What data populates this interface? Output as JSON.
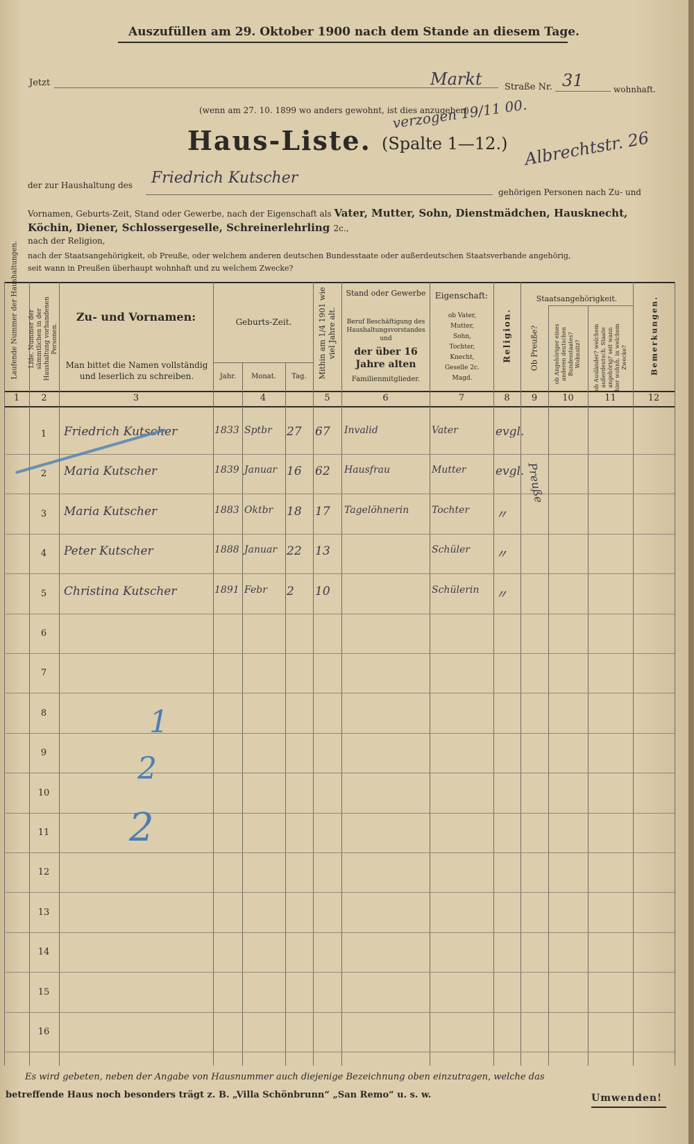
{
  "header": {
    "instruction": "Auszufüllen am 29. Oktober 1900 nach dem Stande an diesem Tage.",
    "now_label": "Jetzt",
    "street_handwritten": "Markt",
    "street_label": "Straße Nr.",
    "house_number_handwritten": "31",
    "resident_label": "wohnhaft.",
    "previous_note": "(wenn am 27. 10. 1899 wo anders gewohnt, ist dies anzugeben)",
    "moved_note_handwritten": "verzogen 19/11 00.",
    "new_address_handwritten": "Albrechtstr. 26",
    "title": "Haus-Liste.",
    "subtitle": "(Spalte 1—12.)",
    "household_label": "der zur Haushaltung des",
    "household_head_handwritten": "Friedrich Kutscher",
    "persons_label": "gehörigen Personen nach Zu- und",
    "desc_line1": "Vornamen, Geburts-Zeit, Stand oder Gewerbe, nach der Eigenschaft als",
    "desc_line1_bold": "Vater, Mutter, Sohn, Dienstmädchen, Hausknecht,",
    "desc_line2_bold": "Köchin, Diener, Schlossergeselle, Schreinerlehrling",
    "desc_line2_end": "2c.,",
    "desc_line3": "nach der Religion,",
    "desc_line4": "nach der Staatsangehörigkeit, ob Preuße, oder welchem anderen deutschen Bundesstaate oder außerdeutschen Staatsverbande angehörig,",
    "desc_line5": "seit wann in Preußen überhaupt wohnhaft und zu welchem Zwecke?"
  },
  "table": {
    "columns": {
      "c1": "Laufende Nummer der Haushaltungen.",
      "c2": "Lfde. Nummer der sämmtlichen in der Haushaltung vorhandenen Personen.",
      "c3_title": "Zu- und Vornamen:",
      "c3_note": "Man bittet die Namen vollständig und leserlich zu schreiben.",
      "c4_title": "Geburts-Zeit.",
      "c4_year": "Jahr.",
      "c4_month": "Monat.",
      "c4_day": "Tag.",
      "c5": "Mithin am 1/4 1901 wie viel Jahre alt.",
      "c6_title": "Stand oder Gewerbe",
      "c6_sub": "Beruf Beschäftigung des Haushaltungsvorstandes und",
      "c6_bold": "der über 16 Jahre alten",
      "c6_end": "Familienmitglieder.",
      "c7_title": "Eigenschaft:",
      "c7_sub": "ob Vater, Mutter, Sohn, Tochter, Knecht, Geselle 2c. Magd.",
      "c8": "Religion.",
      "group": "Staatsangehörigkeit.",
      "c9": "Ob Preuße?",
      "c10": "ob Angehöriger eines anderen deutschen Bundesstaates? Wohnsitz?",
      "c11": "ob Ausländer? welchem außerdeutsch. Staate angehörig? seit wann hier wohnh. in welchem Zwecke?",
      "c12": "Bemerkungen."
    },
    "column_numbers": [
      "1",
      "2",
      "3",
      "4",
      "5",
      "6",
      "7",
      "8",
      "9",
      "10",
      "11",
      "12"
    ],
    "row_numbers": [
      "1",
      "2",
      "3",
      "4",
      "5",
      "6",
      "7",
      "8",
      "9",
      "10",
      "11",
      "12",
      "13",
      "14",
      "15",
      "16"
    ],
    "entries": [
      {
        "name": "Friedrich Kutscher",
        "year": "1833",
        "month": "Sptbr",
        "day": "27",
        "age": "67",
        "occupation": "Invalid",
        "relation": "Vater",
        "religion": "evgl."
      },
      {
        "name": "Maria Kutscher",
        "year": "1839",
        "month": "Januar",
        "day": "16",
        "age": "62",
        "occupation": "Hausfrau",
        "relation": "Mutter",
        "religion": "evgl."
      },
      {
        "name": "Maria Kutscher",
        "year": "1883",
        "month": "Oktbr",
        "day": "18",
        "age": "17",
        "occupation": "Tagelöhnerin",
        "relation": "Tochter",
        "religion": "〃"
      },
      {
        "name": "Peter Kutscher",
        "year": "1888",
        "month": "Januar",
        "day": "22",
        "age": "13",
        "occupation": "",
        "relation": "Schüler",
        "religion": "〃"
      },
      {
        "name": "Christina Kutscher",
        "year": "1891",
        "month": "Febr",
        "day": "2",
        "age": "10",
        "occupation": "",
        "relation": "Schülerin",
        "religion": "〃"
      }
    ],
    "prussian_handwritten": "Preuße",
    "blue_tally": [
      "1",
      "2",
      "2"
    ]
  },
  "footer": {
    "note_line1": "Es wird gebeten, neben der Angabe von Hausnummer auch diejenige Bezeichnung oben einzutragen, welche das",
    "note_line2": "betreffende Haus noch besonders trägt z. B. „Villa Schönbrunn“ „San Remo“ u. s. w.",
    "turn_over": "Umwenden!"
  },
  "colors": {
    "paper": "#d8c8a6",
    "ink": "#2c2a26",
    "handwriting": "#3d3a4a",
    "blue_pencil": "#4a7fb5"
  }
}
